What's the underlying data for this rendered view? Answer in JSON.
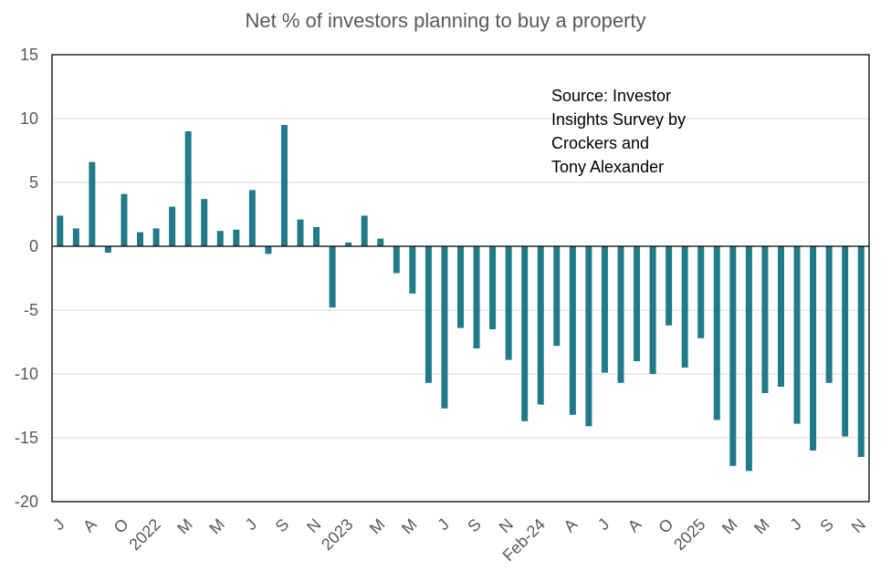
{
  "chart_data": {
    "type": "bar",
    "title": "Net % of investors planning to buy a property",
    "annotation": "Source: Investor\nInsights Survey by\nCrockers and\nTony Alexander",
    "xlabel": "",
    "ylabel": "",
    "ylim": [
      -20,
      15
    ],
    "y_ticks": [
      15,
      10,
      5,
      0,
      -5,
      -10,
      -15,
      -20
    ],
    "grid": true,
    "x_tick_labels": [
      "J",
      "A",
      "O",
      "2022",
      "M",
      "M",
      "J",
      "S",
      "N",
      "2023",
      "M",
      "M",
      "J",
      "S",
      "N",
      "Feb-24",
      "A",
      "J",
      "A",
      "O",
      "2025",
      "M",
      "M",
      "J",
      "S",
      "N"
    ],
    "x_tick_label_every": 2,
    "values": [
      2.4,
      1.4,
      6.6,
      -0.5,
      4.1,
      1.1,
      1.4,
      3.1,
      9.0,
      3.7,
      1.2,
      1.3,
      4.4,
      -0.6,
      9.5,
      2.1,
      1.5,
      -4.8,
      0.3,
      2.4,
      0.6,
      -2.1,
      -3.7,
      -10.7,
      -12.7,
      -6.4,
      -8.0,
      -6.5,
      -8.9,
      -13.7,
      -12.4,
      -7.8,
      -13.2,
      -14.1,
      -9.9,
      -10.7,
      -9.0,
      -10.0,
      -6.2,
      -9.5,
      -7.2,
      -13.6,
      -17.2,
      -17.6,
      -11.5,
      -11.0,
      -13.9,
      -16.0,
      -10.7,
      -14.9,
      -16.5
    ],
    "colors": {
      "bar": "#217A8A",
      "grid": "#D9D9D9",
      "text": "#595959",
      "axis": "#000000"
    }
  }
}
